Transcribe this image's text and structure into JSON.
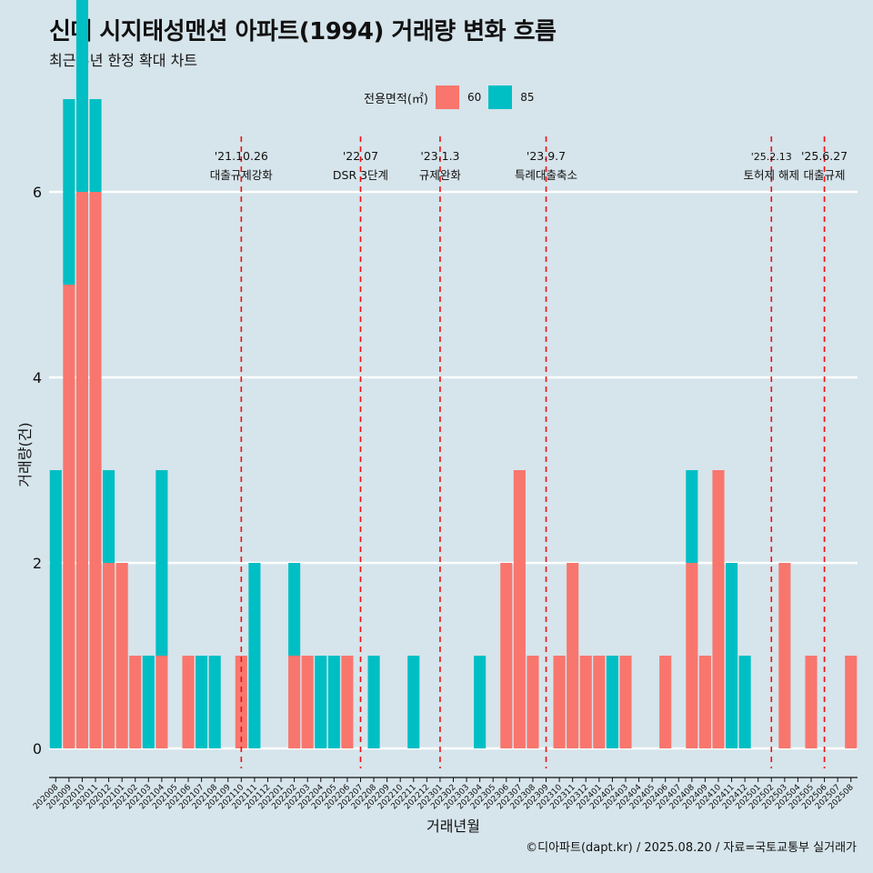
{
  "title": "신매 시지태성맨션 아파트(1994) 거래량 변화 흐름",
  "subtitle": "최근 5년 한정 확대 차트",
  "legend": {
    "title": "전용면적(㎡)",
    "items": [
      {
        "label": "60",
        "color": "#f8766d"
      },
      {
        "label": "85",
        "color": "#00bfc4"
      }
    ]
  },
  "caption": "©디아파트(dapt.kr) / 2025.08.20 / 자료=국토교통부 실거래가",
  "chart_data": {
    "type": "bar",
    "xlabel": "거래년월",
    "ylabel": "거래량(건)",
    "ylim": [
      0,
      6
    ],
    "yticks": [
      0,
      2,
      4,
      6
    ],
    "grid": true,
    "legend_position": "top",
    "categories": [
      "202008",
      "202009",
      "202010",
      "202011",
      "202012",
      "202101",
      "202102",
      "202103",
      "202104",
      "202105",
      "202106",
      "202107",
      "202108",
      "202109",
      "202110",
      "202111",
      "202112",
      "202201",
      "202202",
      "202203",
      "202204",
      "202205",
      "202206",
      "202207",
      "202208",
      "202209",
      "202210",
      "202211",
      "202212",
      "202301",
      "202302",
      "202303",
      "202304",
      "202305",
      "202306",
      "202307",
      "202308",
      "202309",
      "202310",
      "202311",
      "202312",
      "202401",
      "202402",
      "202403",
      "202404",
      "202405",
      "202406",
      "202407",
      "202408",
      "202409",
      "202410",
      "202411",
      "202412",
      "202501",
      "202502",
      "202503",
      "202504",
      "202505",
      "202506",
      "202507",
      "202508"
    ],
    "series": [
      {
        "name": "60",
        "color": "#f8766d",
        "values": [
          0,
          5,
          6,
          6,
          2,
          2,
          1,
          0,
          1,
          0,
          1,
          0,
          0,
          0,
          1,
          0,
          0,
          0,
          1,
          1,
          0,
          0,
          1,
          0,
          0,
          0,
          0,
          0,
          0,
          0,
          0,
          0,
          0,
          0,
          2,
          3,
          1,
          0,
          1,
          2,
          1,
          1,
          0,
          1,
          0,
          0,
          1,
          0,
          2,
          1,
          3,
          0,
          0,
          0,
          0,
          2,
          0,
          1,
          0,
          0,
          1
        ]
      },
      {
        "name": "85",
        "color": "#00bfc4",
        "values": [
          3,
          2,
          3,
          1,
          1,
          0,
          0,
          1,
          2,
          0,
          0,
          1,
          1,
          0,
          0,
          2,
          0,
          0,
          1,
          0,
          1,
          1,
          0,
          0,
          1,
          0,
          0,
          1,
          0,
          0,
          0,
          0,
          1,
          0,
          0,
          0,
          0,
          0,
          0,
          0,
          0,
          0,
          1,
          0,
          0,
          0,
          0,
          0,
          1,
          0,
          0,
          2,
          1,
          0,
          0,
          0,
          0,
          0,
          0,
          0,
          0
        ]
      }
    ],
    "events": [
      {
        "at": "202110",
        "date": "'21.10.26",
        "label": "대출규제강화"
      },
      {
        "at": "202207",
        "date": "'22.07",
        "label": "DSR 3단계"
      },
      {
        "at": "202301",
        "date": "'23.1.3",
        "label": "규제완화"
      },
      {
        "at": "202309",
        "date": "'23.9.7",
        "label": "특례대출축소"
      },
      {
        "at": "202502",
        "date": "'25.2.13",
        "label": "토허제 해제"
      },
      {
        "at": "202506",
        "date": "'25.6.27",
        "label": "대출규제"
      }
    ]
  }
}
